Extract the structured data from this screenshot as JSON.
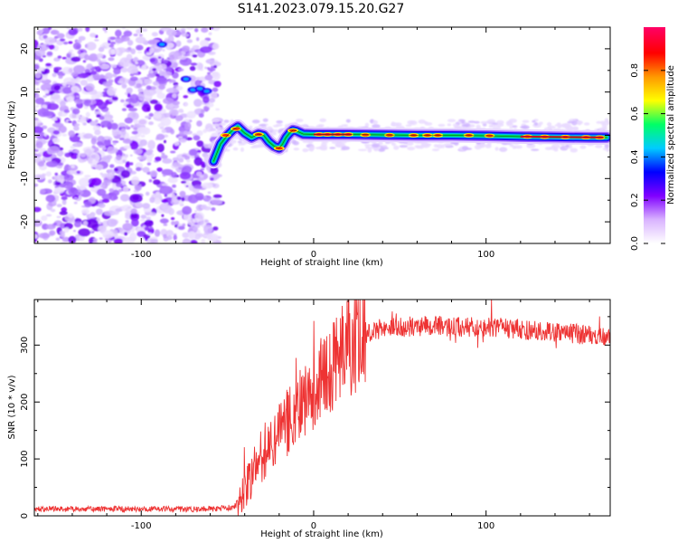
{
  "figure": {
    "title": "S141.2023.079.15.20.G27"
  },
  "chart_data": [
    {
      "type": "heatmap",
      "xlabel": "Height of straight line (km)",
      "ylabel": "Frequency (Hz)",
      "xlim": [
        -162,
        172
      ],
      "ylim": [
        -25,
        25
      ],
      "xticks": [
        -100,
        0,
        100
      ],
      "yticks": [
        -20,
        -10,
        0,
        10,
        20
      ],
      "colorbar": {
        "label": "Normalized spectral amplitude",
        "range": [
          0,
          1
        ],
        "ticks": [
          0.0,
          0.2,
          0.4,
          0.6,
          0.8
        ],
        "colors": [
          "#ffffff",
          "#d9b3ff",
          "#8000ff",
          "#0000ff",
          "#00ccff",
          "#00ff66",
          "#ffff00",
          "#ff9900",
          "#ff0000",
          "#ff0066"
        ]
      },
      "noise_region": {
        "x_range": [
          -162,
          -58
        ],
        "y_range": [
          -25,
          25
        ]
      },
      "ridge_line": {
        "x": [
          -58,
          -54,
          -50,
          -47,
          -44,
          -40,
          -36,
          -32,
          -29,
          -26,
          -23,
          -20,
          -18,
          -16,
          -14,
          -12,
          -10,
          -6,
          0,
          20,
          40,
          60,
          80,
          100,
          120,
          140,
          160,
          170
        ],
        "y": [
          -6,
          -2,
          0,
          1.2,
          2,
          0.5,
          -0.5,
          0.3,
          0,
          -1.5,
          -2.5,
          -3,
          -2,
          -0.5,
          0.5,
          1.2,
          1,
          0.3,
          0.2,
          0.2,
          0.1,
          0,
          0,
          -0.1,
          -0.3,
          -0.4,
          -0.5,
          -0.5
        ]
      }
    },
    {
      "type": "line",
      "xlabel": "Height of straight line (km)",
      "ylabel": "SNR (10 * v/v)",
      "xlim": [
        -162,
        172
      ],
      "ylim": [
        0,
        380
      ],
      "xticks": [
        -100,
        0,
        100
      ],
      "yticks": [
        0,
        100,
        200,
        300
      ],
      "series": [
        {
          "color": "#ee3333",
          "x": [
            -162,
            -140,
            -120,
            -100,
            -80,
            -60,
            -50,
            -45,
            -42,
            -40,
            -38,
            -35,
            -32,
            -30,
            -28,
            -25,
            -22,
            -20,
            -15,
            -10,
            -5,
            0,
            5,
            10,
            15,
            20,
            25,
            30,
            40,
            50,
            60,
            70,
            80,
            90,
            100,
            110,
            120,
            130,
            140,
            150,
            160,
            172
          ],
          "values": [
            12,
            12,
            12,
            12,
            12,
            12,
            14,
            18,
            28,
            45,
            60,
            80,
            95,
            105,
            115,
            125,
            135,
            145,
            165,
            185,
            200,
            215,
            240,
            260,
            280,
            295,
            310,
            320,
            330,
            332,
            333,
            334,
            333,
            332,
            330,
            330,
            328,
            325,
            322,
            320,
            318,
            318
          ]
        }
      ]
    }
  ]
}
